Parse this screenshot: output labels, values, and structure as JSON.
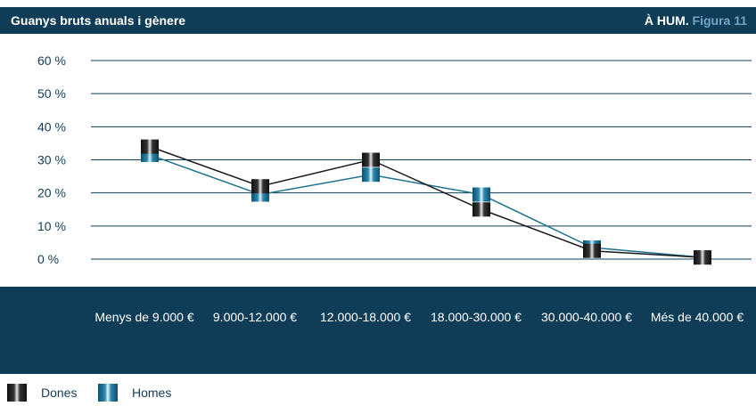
{
  "header": {
    "title": "Guanys bruts anuals i gènere",
    "source": "À HUM.",
    "figure": "Figura 11"
  },
  "chart_data": {
    "type": "line",
    "categories": [
      "Menys de 9.000 €",
      "9.000-12.000 €",
      "12.000-18.000 €",
      "18.000-30.000 €",
      "30.000-40.000 €",
      "Més de 40.000 €"
    ],
    "yticks": [
      "0 %",
      "10 %",
      "20 %",
      "30 %",
      "40 %",
      "50 %",
      "60 %"
    ],
    "ylim": [
      0,
      60
    ],
    "grid": true,
    "legend_position": "bottom-left",
    "series": [
      {
        "name": "Dones",
        "values": [
          34,
          22,
          30,
          15,
          2.5,
          0.5
        ],
        "color": "#1a1a1a"
      },
      {
        "name": "Homes",
        "values": [
          31.5,
          19.5,
          25.5,
          19.5,
          3.5,
          0.5
        ],
        "color": "#1f7192"
      }
    ]
  },
  "colors": {
    "accent": "#0f3d57",
    "gridline": "#0f3d57",
    "homes": "#1f7192",
    "dones": "#1a1a1a"
  }
}
